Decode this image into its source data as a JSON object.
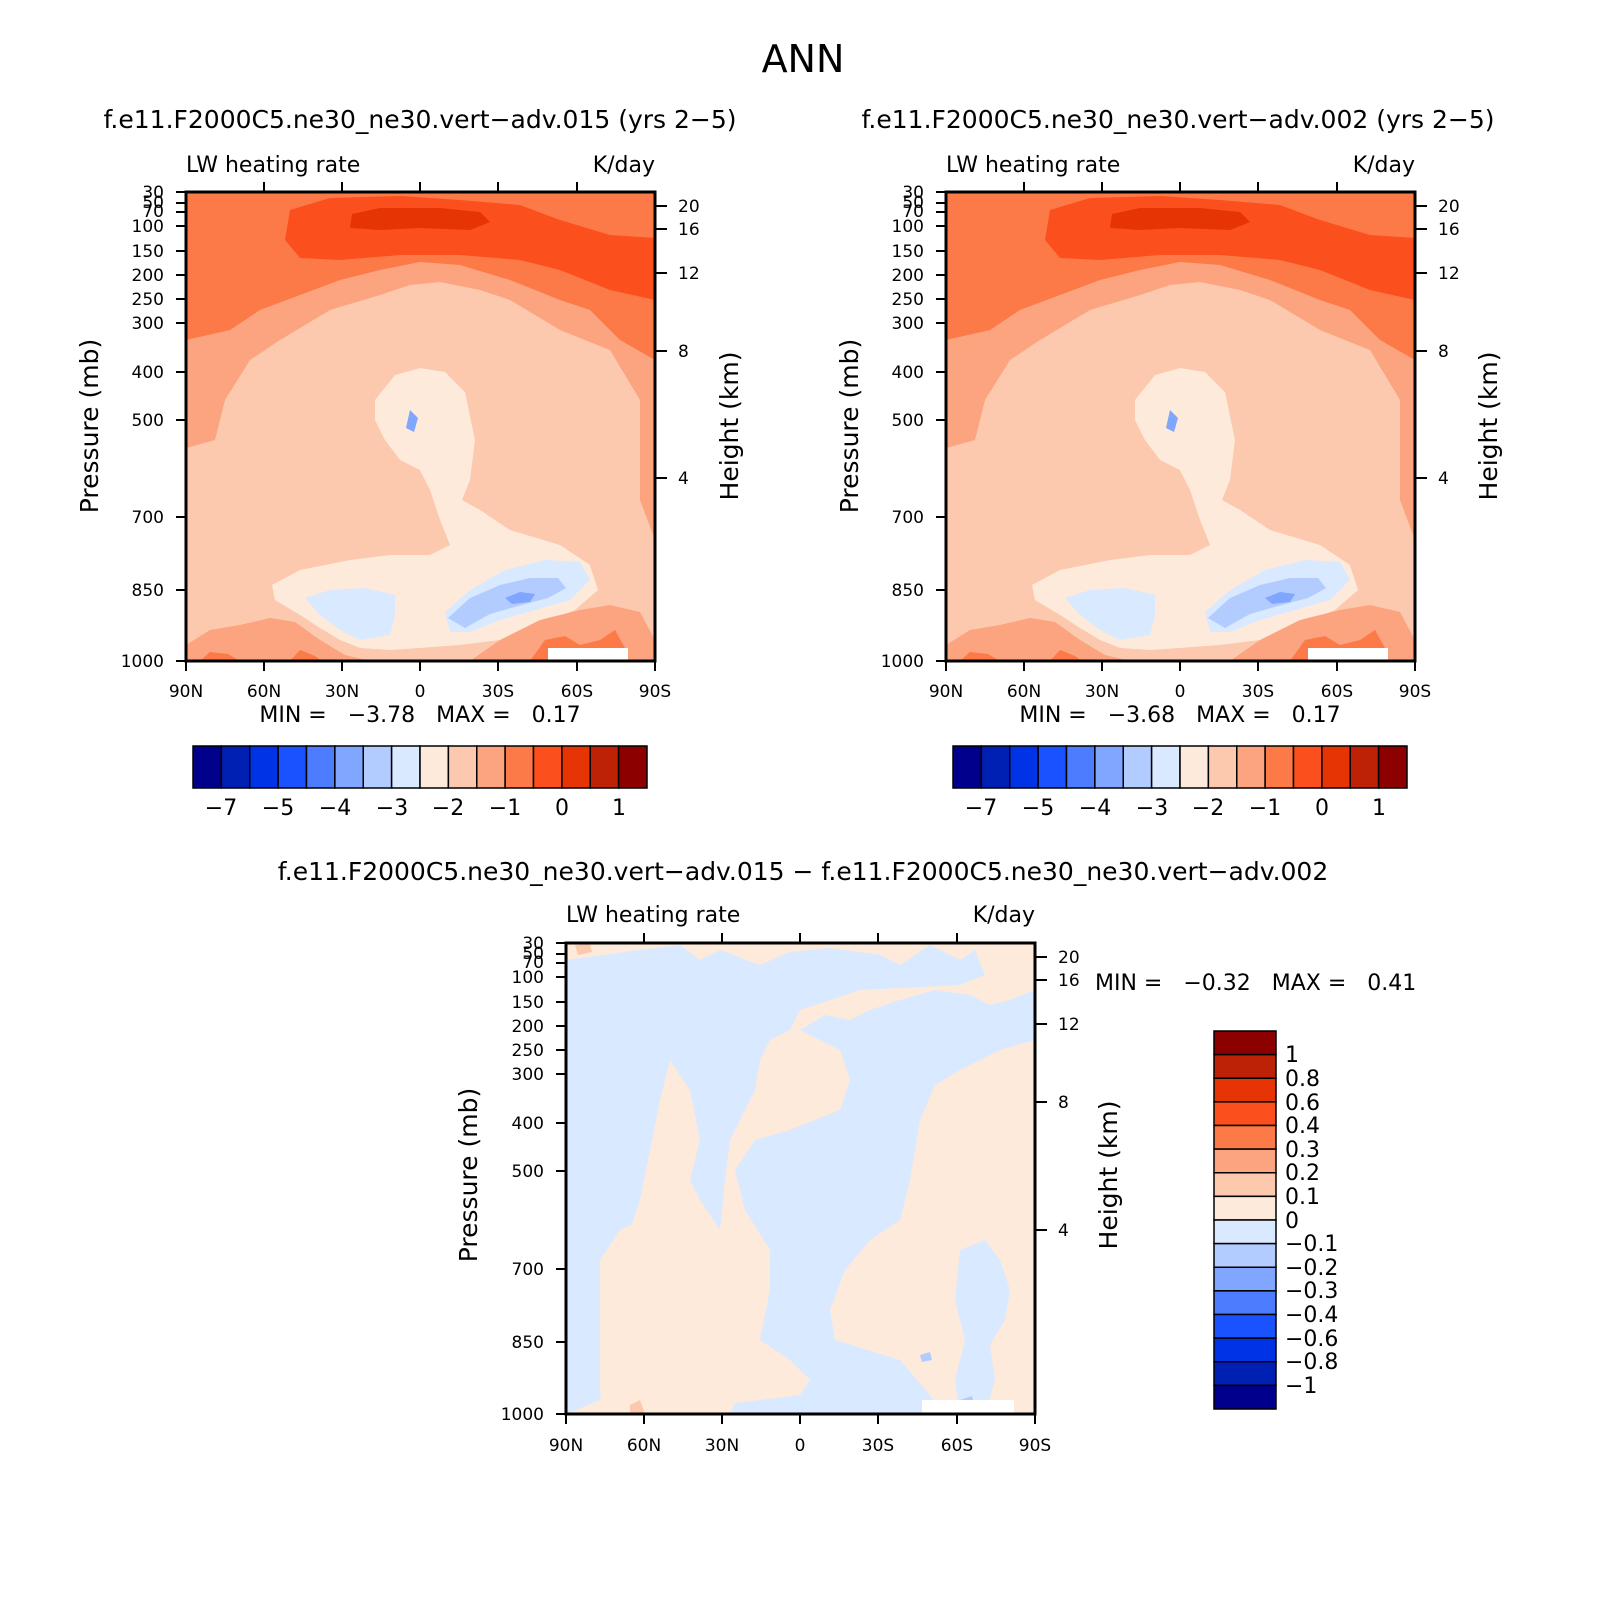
{
  "figure": {
    "title": "ANN",
    "diff_min_max": "MIN =   −0.32   MAX =   0.41"
  },
  "palettes": {
    "main": [
      "#00008c",
      "#0020b3",
      "#0033e6",
      "#1a52ff",
      "#4d7cff",
      "#80a6ff",
      "#b3ccff",
      "#d9e9ff",
      "#fdeadb",
      "#fcc8ae",
      "#fba47f",
      "#fc7a48",
      "#fb501d",
      "#e63405",
      "#bd2106",
      "#8c0000"
    ],
    "field_bands": [
      "#fdeadb",
      "#fcc8ae",
      "#fba47f",
      "#fc7a48",
      "#fb501d",
      "#e63405"
    ],
    "neg_bands": [
      "#d9e9ff",
      "#b3ccff",
      "#80a6ff",
      "#4d7cff"
    ],
    "diff_pos": "#fdeadb",
    "diff_neg": "#d9e9ff"
  },
  "chart_data": [
    {
      "type": "heatmap",
      "panel": "top-left",
      "case_title": "f.e11.F2000C5.ne30_ne30.vert−adv.015 (yrs 2−5)",
      "variable": "LW heating rate",
      "units": "K/day",
      "ylabel": "Pressure (mb)",
      "y2label": "Height (km)",
      "x_ticks": [
        "90N",
        "60N",
        "30N",
        "0",
        "30S",
        "60S",
        "90S"
      ],
      "y_ticks": [
        "30",
        "50",
        "70",
        "100",
        "150",
        "200",
        "250",
        "300",
        "400",
        "500",
        "700",
        "850",
        "1000"
      ],
      "y2_ticks": [
        "20",
        "16",
        "12",
        "8",
        "4"
      ],
      "ylim_mb": [
        1000,
        30
      ],
      "min": -3.78,
      "max": 0.17,
      "min_max_text": "MIN =   −3.78   MAX =   0.17",
      "colorbar_labels": [
        "−7",
        "−5",
        "−4",
        "−3",
        "−2",
        "−1",
        "0",
        "1"
      ]
    },
    {
      "type": "heatmap",
      "panel": "top-right",
      "case_title": "f.e11.F2000C5.ne30_ne30.vert−adv.002 (yrs 2−5)",
      "variable": "LW heating rate",
      "units": "K/day",
      "ylabel": "Pressure (mb)",
      "y2label": "Height (km)",
      "x_ticks": [
        "90N",
        "60N",
        "30N",
        "0",
        "30S",
        "60S",
        "90S"
      ],
      "y_ticks": [
        "30",
        "50",
        "70",
        "100",
        "150",
        "200",
        "250",
        "300",
        "400",
        "500",
        "700",
        "850",
        "1000"
      ],
      "y2_ticks": [
        "20",
        "16",
        "12",
        "8",
        "4"
      ],
      "ylim_mb": [
        1000,
        30
      ],
      "min": -3.68,
      "max": 0.17,
      "min_max_text": "MIN =   −3.68   MAX =   0.17",
      "colorbar_labels": [
        "−7",
        "−5",
        "−4",
        "−3",
        "−2",
        "−1",
        "0",
        "1"
      ]
    },
    {
      "type": "heatmap",
      "panel": "bottom-difference",
      "case_title": "f.e11.F2000C5.ne30_ne30.vert−adv.015 − f.e11.F2000C5.ne30_ne30.vert−adv.002",
      "variable": "LW heating rate",
      "units": "K/day",
      "ylabel": "Pressure (mb)",
      "y2label": "Height (km)",
      "x_ticks": [
        "90N",
        "60N",
        "30N",
        "0",
        "30S",
        "60S",
        "90S"
      ],
      "y_ticks": [
        "30",
        "50",
        "70",
        "100",
        "150",
        "200",
        "250",
        "300",
        "400",
        "500",
        "700",
        "850",
        "1000"
      ],
      "y2_ticks": [
        "20",
        "16",
        "12",
        "8",
        "4"
      ],
      "ylim_mb": [
        1000,
        30
      ],
      "min": -0.32,
      "max": 0.41,
      "colorbar_labels": [
        "1",
        "0.8",
        "0.6",
        "0.4",
        "0.3",
        "0.2",
        "0.1",
        "0",
        "−0.1",
        "−0.2",
        "−0.3",
        "−0.4",
        "−0.6",
        "−0.8",
        "−1"
      ],
      "colorbar_colors": [
        "#8c0000",
        "#bd2106",
        "#e63405",
        "#fb501d",
        "#fc7a48",
        "#fba47f",
        "#fcc8ae",
        "#fdeadb",
        "#d9e9ff",
        "#b3ccff",
        "#80a6ff",
        "#4d7cff",
        "#1a52ff",
        "#0033e6",
        "#0020b3",
        "#00008c"
      ]
    }
  ]
}
